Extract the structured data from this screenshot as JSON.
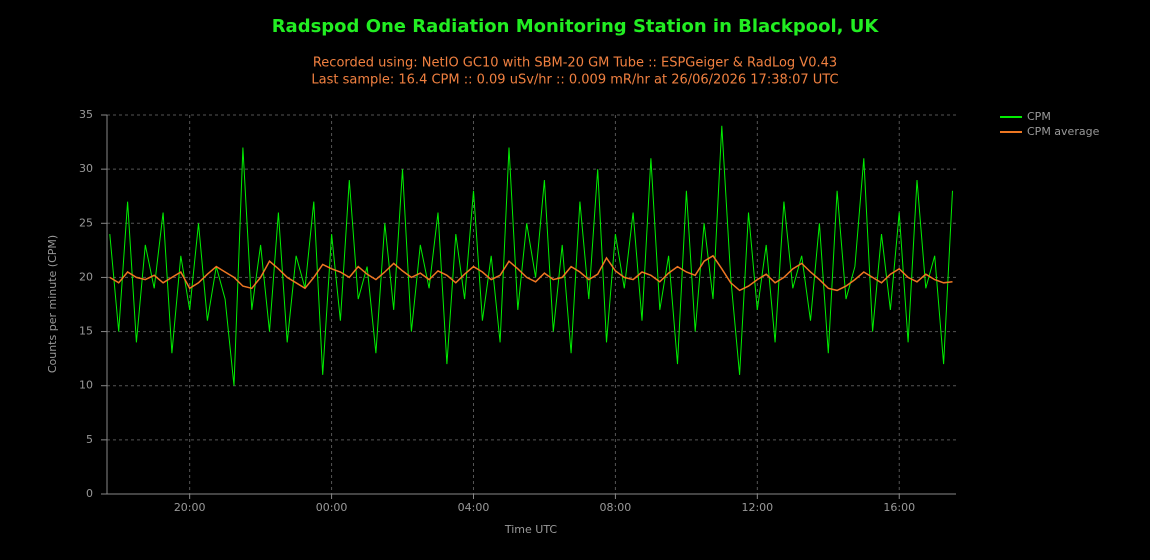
{
  "chart_data": {
    "type": "line",
    "title": "Radspod One Radiation Monitoring Station in Blackpool, UK",
    "subtitle_lines": [
      "Recorded using: NetIO GC10 with SBM-20 GM Tube :: ESPGeiger & RadLog V0.43",
      "Last sample: 16.4 CPM :: 0.09 uSv/hr :: 0.009 mR/hr at 26/06/2026 17:38:07 UTC"
    ],
    "x_label": "Time UTC",
    "y_label": "Counts per minute (CPM)",
    "x": [
      17.75,
      18,
      18.25,
      18.5,
      18.75,
      19,
      19.25,
      19.5,
      19.75,
      20,
      20.25,
      20.5,
      20.75,
      21,
      21.25,
      21.5,
      21.75,
      22,
      22.25,
      22.5,
      22.75,
      23,
      23.25,
      23.5,
      23.75,
      24,
      24.25,
      24.5,
      24.75,
      25,
      25.25,
      25.5,
      25.75,
      26,
      26.25,
      26.5,
      26.75,
      27,
      27.25,
      27.5,
      27.75,
      28,
      28.25,
      28.5,
      28.75,
      29,
      29.25,
      29.5,
      29.75,
      30,
      30.25,
      30.5,
      30.75,
      31,
      31.25,
      31.5,
      31.75,
      32,
      32.25,
      32.5,
      32.75,
      33,
      33.25,
      33.5,
      33.75,
      34,
      34.25,
      34.5,
      34.75,
      35,
      35.25,
      35.5,
      35.75,
      36,
      36.25,
      36.5,
      36.75,
      37,
      37.25,
      37.5,
      37.75,
      38,
      38.25,
      38.5,
      38.75,
      39,
      39.25,
      39.5,
      39.75,
      40,
      40.25,
      40.5,
      40.75,
      41,
      41.25,
      41.5
    ],
    "series": [
      {
        "name": "CPM",
        "color": "#00ee00",
        "values": [
          24,
          15,
          27,
          14,
          23,
          19,
          26,
          13,
          22,
          17,
          25,
          16,
          21,
          18,
          10,
          32,
          17,
          23,
          15,
          26,
          14,
          22,
          19,
          27,
          11,
          24,
          16,
          29,
          18,
          21,
          13,
          25,
          17,
          30,
          15,
          23,
          19,
          26,
          12,
          24,
          18,
          28,
          16,
          22,
          14,
          32,
          17,
          25,
          20,
          29,
          15,
          23,
          13,
          27,
          18,
          30,
          14,
          24,
          19,
          26,
          16,
          31,
          17,
          22,
          12,
          28,
          15,
          25,
          18,
          34,
          20,
          11,
          26,
          17,
          23,
          14,
          27,
          19,
          22,
          16,
          25,
          13,
          28,
          18,
          21,
          31,
          15,
          24,
          17,
          26,
          14,
          29,
          19,
          22,
          12,
          28
        ]
      },
      {
        "name": "CPM average",
        "color": "#ee7722",
        "values": [
          20,
          19.5,
          20.5,
          20,
          19.8,
          20.2,
          19.5,
          20,
          20.5,
          19,
          19.5,
          20.3,
          21,
          20.5,
          20,
          19.2,
          19,
          20,
          21.5,
          20.8,
          20,
          19.5,
          19,
          20,
          21.2,
          20.8,
          20.5,
          20,
          21,
          20.3,
          19.8,
          20.5,
          21.3,
          20.6,
          20,
          20.4,
          19.8,
          20.6,
          20.2,
          19.5,
          20.3,
          21,
          20.5,
          19.8,
          20.2,
          21.5,
          20.8,
          20,
          19.6,
          20.4,
          19.8,
          20,
          21,
          20.5,
          19.8,
          20.3,
          21.8,
          20.6,
          20,
          19.8,
          20.5,
          20.2,
          19.6,
          20.4,
          21,
          20.5,
          20.2,
          21.5,
          22,
          20.8,
          19.5,
          18.8,
          19.2,
          19.8,
          20.3,
          19.5,
          20,
          20.8,
          21.3,
          20.5,
          19.8,
          19,
          18.8,
          19.2,
          19.8,
          20.5,
          20,
          19.5,
          20.3,
          20.8,
          20,
          19.6,
          20.3,
          19.8,
          19.5,
          19.6
        ]
      }
    ],
    "xlim": [
      17.67,
      41.6
    ],
    "xticks": [
      {
        "value": 20,
        "label": "20:00"
      },
      {
        "value": 24,
        "label": "00:00"
      },
      {
        "value": 28,
        "label": "04:00"
      },
      {
        "value": 32,
        "label": "08:00"
      },
      {
        "value": 36,
        "label": "12:00"
      },
      {
        "value": 40,
        "label": "16:00"
      }
    ],
    "ylim": [
      0,
      35
    ],
    "yticks": [
      0,
      5,
      10,
      15,
      20,
      25,
      30,
      35
    ],
    "grid": true
  }
}
